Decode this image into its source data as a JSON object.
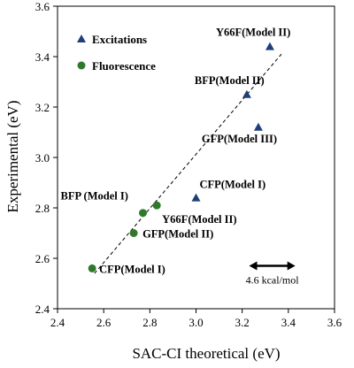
{
  "chart_data": {
    "type": "scatter",
    "title": "",
    "xlabel": "SAC-CI theoretical (eV)",
    "ylabel": "Experimental (eV)",
    "xlim": [
      2.4,
      3.6
    ],
    "ylim": [
      2.4,
      3.6
    ],
    "xticks": [
      "2.4",
      "2.6",
      "2.8",
      "3.0",
      "3.2",
      "3.4",
      "3.6"
    ],
    "yticks": [
      "2.4",
      "2.6",
      "2.8",
      "3.0",
      "3.2",
      "3.4",
      "3.6"
    ],
    "grid": false,
    "legend_position": "top-left",
    "series": [
      {
        "name": "Excitations",
        "marker": "triangle",
        "color": "#1f3f7a",
        "points": [
          {
            "label": "Y66F(Model II)",
            "x": 3.32,
            "y": 3.44
          },
          {
            "label": "BFP(Model II)",
            "x": 3.22,
            "y": 3.25
          },
          {
            "label": "GFP(Model III)",
            "x": 3.27,
            "y": 3.12
          },
          {
            "label": "CFP(Model I)",
            "x": 3.0,
            "y": 2.84
          }
        ]
      },
      {
        "name": "Fluorescence",
        "marker": "circle",
        "color": "#2e7a2a",
        "points": [
          {
            "label": "BFP (Model I)",
            "x": 2.77,
            "y": 2.78
          },
          {
            "label": "Y66F(Model II)",
            "x": 2.83,
            "y": 2.81
          },
          {
            "label": "GFP(Model II)",
            "x": 2.73,
            "y": 2.7
          },
          {
            "label": "CFP(Model I)",
            "x": 2.55,
            "y": 2.56
          }
        ]
      }
    ],
    "fit_line": {
      "style": "dashed",
      "color": "#000000",
      "from": [
        2.56,
        2.54
      ],
      "to": [
        3.37,
        3.41
      ]
    },
    "scale_bar": {
      "label": "4.6 kcal/mol",
      "from_x": 3.23,
      "to_x": 3.43,
      "y": 2.57
    }
  }
}
